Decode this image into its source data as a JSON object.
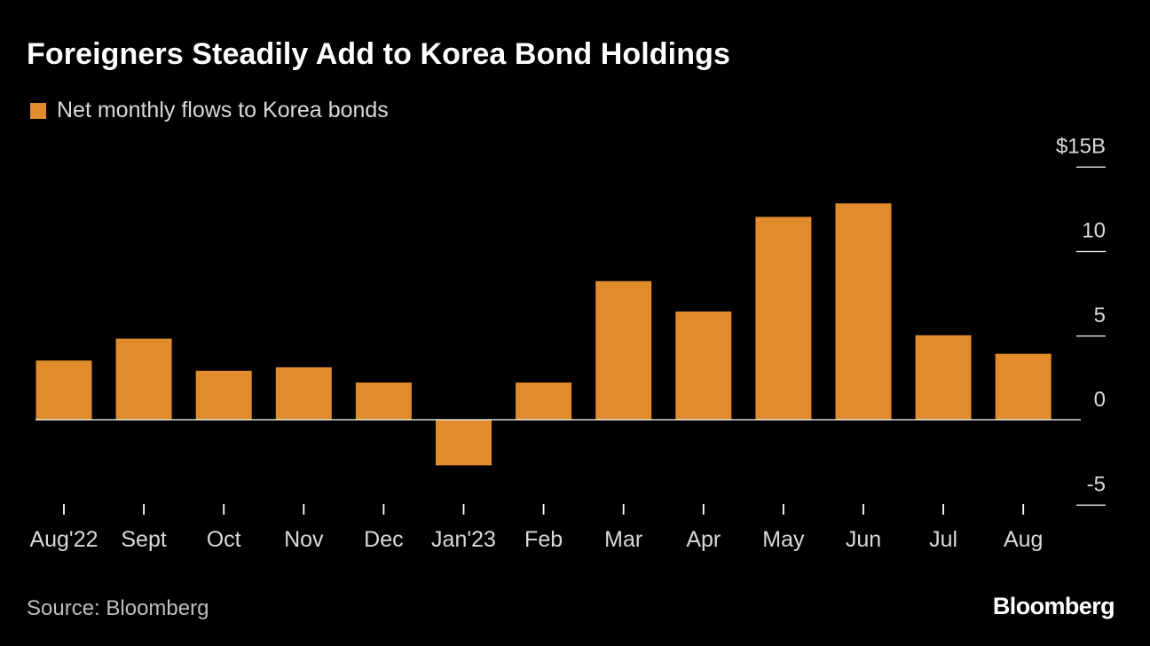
{
  "title": "Foreigners Steadily Add to Korea Bond Holdings",
  "source": "Source: Bloomberg",
  "logo": "Bloomberg",
  "colors": {
    "background": "#000000",
    "bar": "#e08c2c",
    "axis": "#ffffff",
    "text": "#ffffff",
    "muted": "#d9d9d9"
  },
  "chart_data": {
    "type": "bar",
    "title": "Foreigners Steadily Add to Korea Bond Holdings",
    "categories": [
      "Aug'22",
      "Sept",
      "Oct",
      "Nov",
      "Dec",
      "Jan'23",
      "Feb",
      "Mar",
      "Apr",
      "May",
      "Jun",
      "Jul",
      "Aug"
    ],
    "series": [
      {
        "name": "Net monthly flows to Korea bonds",
        "values": [
          3.5,
          4.8,
          2.9,
          3.1,
          2.2,
          -2.7,
          2.2,
          8.2,
          6.4,
          12.0,
          12.8,
          5.0,
          3.9
        ]
      }
    ],
    "yticks": [
      "$15B",
      "10",
      "5",
      "0",
      "-5"
    ],
    "ytick_values": [
      15,
      10,
      5,
      0,
      -5
    ],
    "ylim": [
      -5,
      15
    ],
    "xlabel": "",
    "ylabel": "",
    "legend": "top-left",
    "grid": false
  }
}
